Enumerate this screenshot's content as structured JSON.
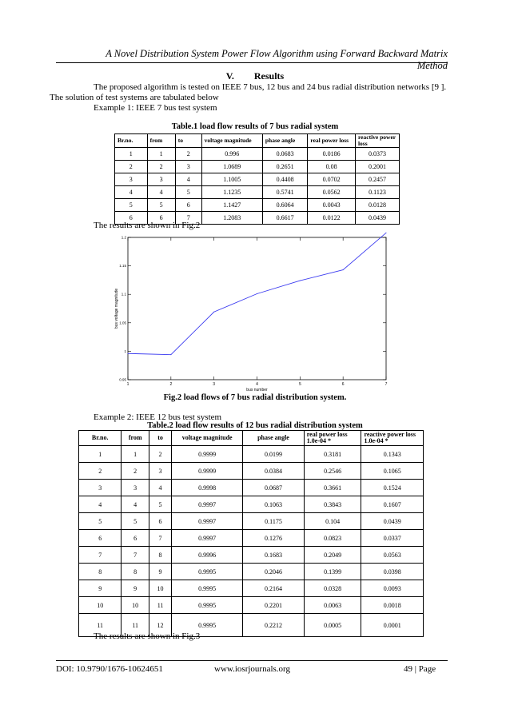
{
  "header": {
    "title": "A Novel Distribution System Power Flow Algorithm using Forward Backward Matrix Method"
  },
  "section": {
    "number": "V.",
    "title": "Results"
  },
  "text": {
    "intro_line1": "The proposed algorithm is tested on IEEE 7 bus, 12 bus and 24 bus radial distribution networks [9 ].",
    "intro_line2": "The solution of test systems are tabulated below",
    "example1": "Example 1: IEEE 7 bus test system",
    "results_fig2": "The results are shown in Fig.2",
    "example2": "Example 2: IEEE 12 bus test system",
    "results_fig3": "The results are shown in Fig.3"
  },
  "table1": {
    "caption": "Table.1 load flow results of 7 bus radial system",
    "headers": [
      "Br.no.",
      "from",
      "to",
      "voltage magnitude",
      "phase angle",
      "real power loss",
      "reactive power loss"
    ],
    "rows": [
      [
        "1",
        "1",
        "2",
        "0.996",
        "0.0683",
        "0.0186",
        "0.0373"
      ],
      [
        "2",
        "2",
        "3",
        "1.0689",
        "0.2651",
        "0.08",
        "0.2001"
      ],
      [
        "3",
        "3",
        "4",
        "1.1005",
        "0.4408",
        "0.0702",
        "0.2457"
      ],
      [
        "4",
        "4",
        "5",
        "1.1235",
        "0.5741",
        "0.0562",
        "0.1123"
      ],
      [
        "5",
        "5",
        "6",
        "1.1427",
        "0.6064",
        "0.0043",
        "0.0128"
      ],
      [
        "6",
        "6",
        "7",
        "1.2083",
        "0.6617",
        "0.0122",
        "0.0439"
      ]
    ]
  },
  "figure2": {
    "caption": "Fig.2 load flows of 7 bus radial distribution system."
  },
  "chart_data": {
    "type": "line",
    "x": [
      1,
      2,
      3,
      4,
      5,
      6,
      7
    ],
    "values": [
      0.996,
      0.994,
      1.069,
      1.101,
      1.124,
      1.143,
      1.208
    ],
    "xlabel": "bus number",
    "ylabel": "bus voltage magnitude",
    "xlim": [
      1,
      7
    ],
    "ylim": [
      0.95,
      1.2
    ],
    "x_ticks": [
      "1",
      "2",
      "3",
      "4",
      "5",
      "6",
      "7"
    ],
    "y_ticks": [
      "0.95",
      "1",
      "1.05",
      "1.1",
      "1.15",
      "1.2"
    ],
    "y_tick_values": [
      0.95,
      1.0,
      1.05,
      1.1,
      1.15,
      1.2
    ],
    "line_color": "#3b3bf0",
    "grid": false
  },
  "table2": {
    "caption": "Table.2 load flow results of 12 bus radial distribution system",
    "headers": [
      "Br.no.",
      "from",
      "to",
      "voltage magnitude",
      "phase angle",
      "real power loss 1.0e-04 *",
      "reactive power loss 1.0e-04 *"
    ],
    "rows": [
      [
        "1",
        "1",
        "2",
        "0.9999",
        "0.0199",
        "0.3181",
        "0.1343"
      ],
      [
        "2",
        "2",
        "3",
        "0.9999",
        "0.0384",
        "0.2546",
        "0.1065"
      ],
      [
        "3",
        "3",
        "4",
        "0.9998",
        "0.0687",
        "0.3661",
        "0.1524"
      ],
      [
        "4",
        "4",
        "5",
        "0.9997",
        "0.1063",
        "0.3843",
        "0.1607"
      ],
      [
        "5",
        "5",
        "6",
        "0.9997",
        "0.1175",
        "0.104",
        "0.0439"
      ],
      [
        "6",
        "6",
        "7",
        "0.9997",
        "0.1276",
        "0.0823",
        "0.0337"
      ],
      [
        "7",
        "7",
        "8",
        "0.9996",
        "0.1683",
        "0.2049",
        "0.0563"
      ],
      [
        "8",
        "8",
        "9",
        "0.9995",
        "0.2046",
        "0.1399",
        "0.0398"
      ],
      [
        "9",
        "9",
        "10",
        "0.9995",
        "0.2164",
        "0.0328",
        "0.0093"
      ],
      [
        "10",
        "10",
        "11",
        "0.9995",
        "0.2201",
        "0.0063",
        "0.0018"
      ],
      [
        "11",
        "11",
        "12",
        "0.9995",
        "0.2212",
        "0.0005",
        "0.0001"
      ]
    ]
  },
  "footer": {
    "doi": "DOI: 10.9790/1676-10624651",
    "site": "www.iosrjournals.org",
    "page": "49 | Page"
  }
}
